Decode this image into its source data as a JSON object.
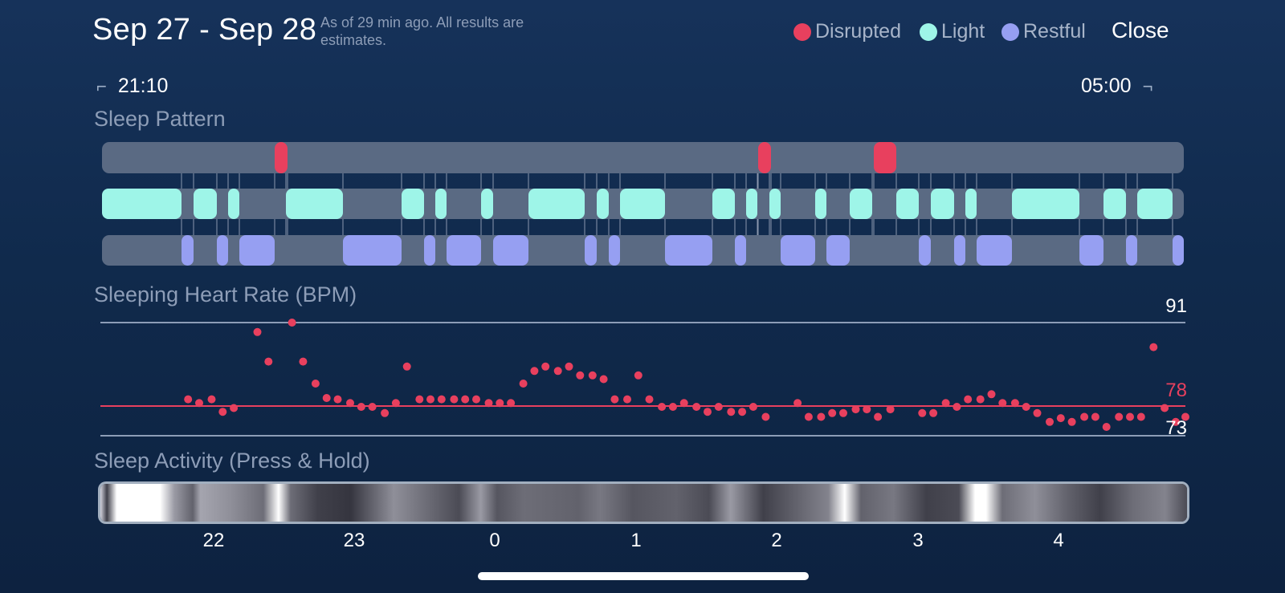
{
  "header": {
    "date_range": "Sep 27 - Sep 28",
    "note": "As of 29 min ago. All results are estimates.",
    "close_label": "Close"
  },
  "legend": [
    {
      "label": "Disrupted",
      "color": "#e8405e"
    },
    {
      "label": "Light",
      "color": "#9ef5e8"
    },
    {
      "label": "Restful",
      "color": "#969ff2"
    }
  ],
  "timeline": {
    "start": "21:10",
    "end": "05:00"
  },
  "sleep_pattern": {
    "title": "Sleep Pattern",
    "stages": [
      "Disrupted",
      "Light",
      "Restful"
    ]
  },
  "heart_rate": {
    "title": "Sleeping Heart Rate (BPM)",
    "max_label": "91",
    "avg_label": "78",
    "min_label": "73"
  },
  "sleep_activity": {
    "title": "Sleep Activity (Press & Hold)",
    "x_ticks": [
      "22",
      "23",
      "0",
      "1",
      "2",
      "3",
      "4"
    ]
  },
  "chart_data": {
    "type": "scatter",
    "title": "Sleeping Heart Rate (BPM)",
    "x_unit": "hour",
    "x_range": [
      21.167,
      5.0
    ],
    "ylim": [
      73,
      91
    ],
    "reference_lines": [
      91,
      78,
      73
    ],
    "points": [
      [
        21.8,
        78.8
      ],
      [
        21.88,
        78.2
      ],
      [
        21.97,
        78.8
      ],
      [
        22.05,
        76.8
      ],
      [
        22.13,
        77.4
      ],
      [
        22.3,
        89.5
      ],
      [
        22.38,
        84.8
      ],
      [
        22.55,
        91
      ],
      [
        22.63,
        84.8
      ],
      [
        22.72,
        81.3
      ],
      [
        22.8,
        79
      ],
      [
        22.88,
        78.8
      ],
      [
        22.97,
        78.2
      ],
      [
        23.05,
        77.6
      ],
      [
        23.13,
        77.6
      ],
      [
        23.22,
        76.6
      ],
      [
        23.3,
        78.2
      ],
      [
        23.38,
        84
      ],
      [
        23.47,
        78.8
      ],
      [
        23.55,
        78.8
      ],
      [
        23.63,
        78.8
      ],
      [
        23.72,
        78.8
      ],
      [
        23.8,
        78.8
      ],
      [
        23.88,
        78.8
      ],
      [
        23.97,
        78.2
      ],
      [
        24.05,
        78.2
      ],
      [
        24.13,
        78.2
      ],
      [
        24.22,
        81.3
      ],
      [
        24.3,
        83.3
      ],
      [
        24.38,
        84
      ],
      [
        24.47,
        83.3
      ],
      [
        24.55,
        84
      ],
      [
        24.63,
        82.6
      ],
      [
        24.72,
        82.6
      ],
      [
        24.8,
        82
      ],
      [
        24.88,
        78.8
      ],
      [
        24.97,
        78.8
      ],
      [
        25.05,
        82.6
      ],
      [
        25.13,
        78.8
      ],
      [
        25.22,
        77.6
      ],
      [
        25.3,
        77.6
      ],
      [
        25.38,
        78.2
      ],
      [
        25.47,
        77.6
      ],
      [
        25.55,
        76.8
      ],
      [
        25.63,
        77.6
      ],
      [
        25.72,
        76.8
      ],
      [
        25.8,
        76.8
      ],
      [
        25.88,
        77.6
      ],
      [
        25.97,
        76
      ],
      [
        26.2,
        78.2
      ],
      [
        26.28,
        76
      ],
      [
        26.37,
        76
      ],
      [
        26.45,
        76.6
      ],
      [
        26.53,
        76.6
      ],
      [
        26.62,
        77.2
      ],
      [
        26.7,
        77.2
      ],
      [
        26.78,
        76
      ],
      [
        26.87,
        77.2
      ],
      [
        27.1,
        76.6
      ],
      [
        27.18,
        76.6
      ],
      [
        27.27,
        78.2
      ],
      [
        27.35,
        77.6
      ],
      [
        27.43,
        78.8
      ],
      [
        27.52,
        78.8
      ],
      [
        27.6,
        79.6
      ],
      [
        27.68,
        78.2
      ],
      [
        27.77,
        78.2
      ],
      [
        27.85,
        77.6
      ],
      [
        27.93,
        76.6
      ],
      [
        28.02,
        75.2
      ],
      [
        28.1,
        75.8
      ],
      [
        28.18,
        75.2
      ],
      [
        28.27,
        76
      ],
      [
        28.35,
        76
      ],
      [
        28.43,
        74.4
      ],
      [
        28.52,
        76
      ],
      [
        28.6,
        76
      ],
      [
        28.68,
        76
      ],
      [
        28.77,
        87.1
      ],
      [
        28.85,
        77.4
      ],
      [
        28.93,
        75.2
      ],
      [
        29.0,
        76
      ]
    ]
  }
}
